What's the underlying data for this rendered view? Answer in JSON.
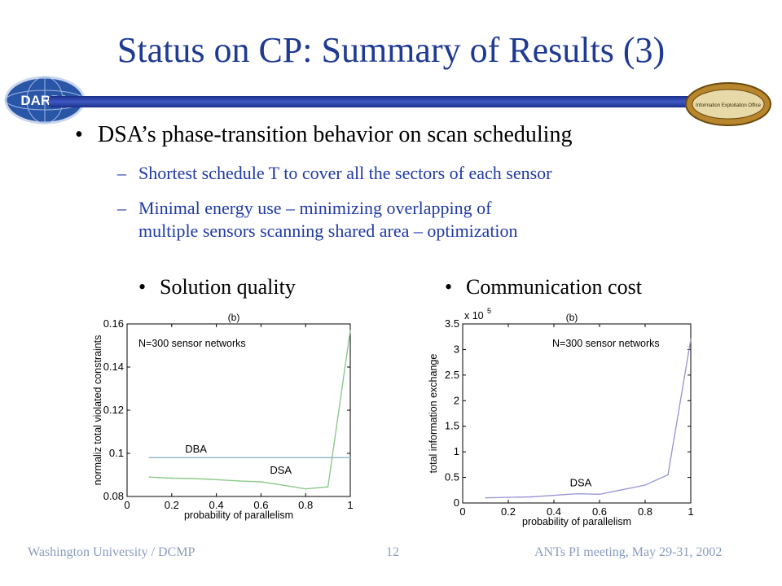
{
  "slide": {
    "title": "Status on CP: Summary of Results (3)",
    "logo_left_text": "DARPA",
    "logo_right_text": "Information Exploitation Office",
    "bullet": "DSA’s phase-transition behavior on scan scheduling",
    "sub1": "Shortest schedule T to cover all the sectors of each sensor",
    "sub2_line1": "Minimal energy use – minimizing overlapping of",
    "sub2_line2": "multiple sensors scanning shared area – optimization",
    "bullet_glyph": "•",
    "dash_glyph": "–",
    "chart1_label": "Solution quality",
    "chart2_label": "Communication cost",
    "footer_left": "Washington University / DCMP",
    "footer_center": "12",
    "footer_right": "ANTs PI meeting, May 29-31, 2002"
  },
  "colors": {
    "title": "#1f3a93",
    "sub_text": "#1f3aa8",
    "footer": "#8a9bbf",
    "dba_line": "#8fb3c8",
    "dsa_green": "#8cc98c",
    "dsa_purple": "#9a9ad6"
  },
  "chart_data": [
    {
      "type": "line",
      "title": "(b)",
      "annotation": "N=300 sensor  networks",
      "xlabel": "probability of parallelism",
      "ylabel": "normaliz total violated constraints",
      "xlim": [
        0,
        1
      ],
      "ylim": [
        0.08,
        0.16
      ],
      "xticks": [
        "0",
        "0.2",
        "0.4",
        "0.6",
        "0.8",
        "1"
      ],
      "yticks": [
        "0.08",
        "0.1",
        "0.12",
        "0.14",
        "0.16"
      ],
      "legend": "none",
      "series": [
        {
          "name": "DBA",
          "color": "#8fb3c8",
          "x": [
            0.1,
            0.2,
            0.3,
            0.4,
            0.5,
            0.6,
            0.7,
            0.8,
            0.9,
            1.0
          ],
          "y": [
            0.098,
            0.098,
            0.098,
            0.098,
            0.098,
            0.098,
            0.098,
            0.098,
            0.098,
            0.098
          ],
          "label_pos": [
            0.26,
            0.1003
          ]
        },
        {
          "name": "DSA",
          "color": "#8cc98c",
          "x": [
            0.1,
            0.2,
            0.3,
            0.4,
            0.5,
            0.6,
            0.7,
            0.8,
            0.9,
            1.0
          ],
          "y": [
            0.089,
            0.0885,
            0.0883,
            0.0878,
            0.0872,
            0.0868,
            0.0852,
            0.0835,
            0.0845,
            0.157
          ],
          "label_pos": [
            0.64,
            0.0905
          ]
        }
      ]
    },
    {
      "type": "line",
      "title": "(b)",
      "annotation": "N=300 sensor networks",
      "scale_label": "x 10",
      "scale_exponent": "5",
      "xlabel": "probability of parallelism",
      "ylabel": "total information exchange",
      "xlim": [
        0,
        1
      ],
      "ylim": [
        0,
        3.5
      ],
      "xticks": [
        "0",
        "0.2",
        "0.4",
        "0.6",
        "0.8",
        "1"
      ],
      "yticks": [
        "0",
        "0.5",
        "1",
        "1.5",
        "2",
        "2.5",
        "3",
        "3.5"
      ],
      "legend": "none",
      "series": [
        {
          "name": "DSA",
          "color": "#9a9ad6",
          "x": [
            0.1,
            0.2,
            0.3,
            0.4,
            0.5,
            0.6,
            0.7,
            0.8,
            0.9,
            1.0
          ],
          "y": [
            0.1,
            0.11,
            0.12,
            0.15,
            0.18,
            0.17,
            0.26,
            0.35,
            0.55,
            3.2
          ],
          "label_pos": [
            0.47,
            0.33
          ]
        }
      ]
    }
  ]
}
